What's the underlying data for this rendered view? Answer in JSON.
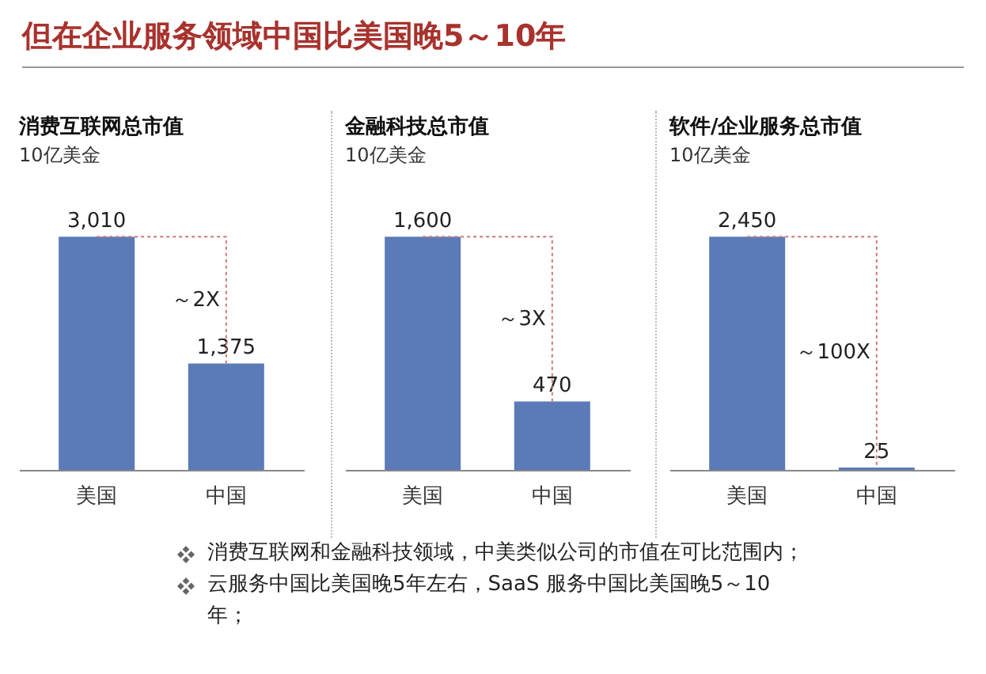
{
  "chart_data": [
    {
      "type": "bar",
      "title": "消费互联网总市值",
      "subtitle": "10亿美金",
      "categories": [
        "美国",
        "中国"
      ],
      "values": [
        3010,
        1375
      ],
      "value_labels": [
        "3,010",
        "1,375"
      ],
      "color": "#5b7bb8",
      "annotations": [
        "～2X"
      ]
    },
    {
      "type": "bar",
      "title": "金融科技总市值",
      "subtitle": "10亿美金",
      "categories": [
        "美国",
        "中国"
      ],
      "values": [
        1600,
        470
      ],
      "value_labels": [
        "1,600",
        "470"
      ],
      "color": "#5b7bb8",
      "annotations": [
        "～3X"
      ]
    },
    {
      "type": "bar",
      "title": "软件/企业服务总市值",
      "subtitle": "10亿美金",
      "categories": [
        "美国",
        "中国"
      ],
      "values": [
        2450,
        25
      ],
      "value_labels": [
        "2,450",
        "25"
      ],
      "color": "#5b7bb8",
      "annotations": [
        "～100X"
      ]
    },
    {
      "type": "other",
      "title": "但在企业服务领域中国比美国晚5～10年",
      "annotations": [
        "消费互联网和金融科技领域，中美类似公司的市值在可比范围内；",
        "云服务中国比美国晚5年左右，SaaS 服务中国比美国晚5～10年；"
      ]
    }
  ]
}
